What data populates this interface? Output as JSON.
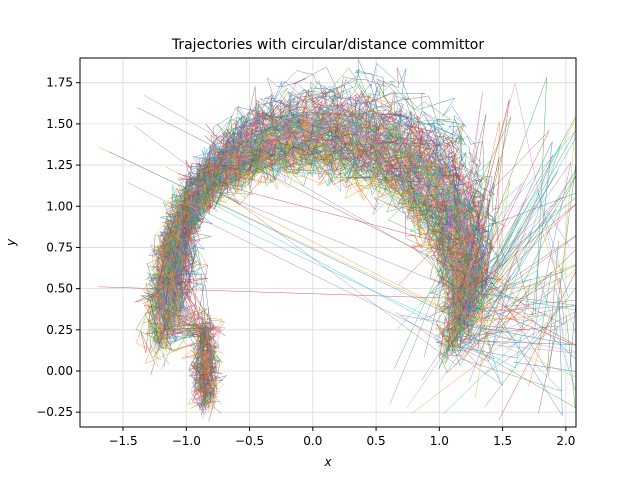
{
  "chart_data": {
    "type": "line",
    "title": "Trajectories with circular/distance committor",
    "xlabel": "x",
    "ylabel": "y",
    "xlim": [
      -1.84,
      2.08
    ],
    "ylim": [
      -0.34,
      1.9
    ],
    "xticks": [
      -1.5,
      -1.0,
      -0.5,
      0.0,
      0.5,
      1.0,
      1.5,
      2.0
    ],
    "xtick_labels": [
      "−1.5",
      "−1.0",
      "−0.5",
      "0.0",
      "0.5",
      "1.0",
      "1.5",
      "2.0"
    ],
    "yticks": [
      -0.25,
      0.0,
      0.25,
      0.5,
      0.75,
      1.0,
      1.25,
      1.5,
      1.75
    ],
    "ytick_labels": [
      "−0.25",
      "0.00",
      "0.25",
      "0.50",
      "0.75",
      "1.00",
      "1.25",
      "1.50",
      "1.75"
    ],
    "grid": true,
    "legend": "none",
    "series_colors": [
      "#1f77b4",
      "#ff7f0e",
      "#2ca02c",
      "#d62728",
      "#9467bd",
      "#8c564b",
      "#e377c2",
      "#7f7f7f",
      "#bcbd22",
      "#17becf"
    ],
    "path_shape": {
      "left_basin": [
        -1.1,
        0.3
      ],
      "right_basin": [
        1.15,
        0.3
      ],
      "lower_basin": [
        -0.85,
        -0.15
      ],
      "arc_peak": [
        0.25,
        1.45
      ]
    }
  }
}
